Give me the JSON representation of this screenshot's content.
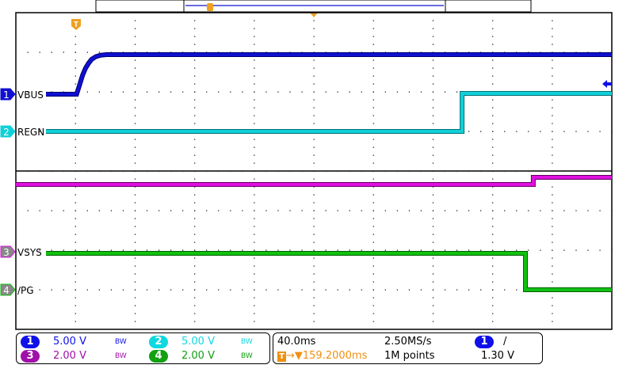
{
  "chart_data": {
    "type": "line",
    "title": "",
    "xlabel": "",
    "ylabel": "",
    "x_unit": "ms",
    "xlim": [
      -40.8,
      359.2
    ],
    "grid": true,
    "divisions": {
      "horizontal": 10,
      "vertical": 8
    },
    "series": [
      {
        "name": "VBUS",
        "channel": "1",
        "color": "#1010d0",
        "volts_per_div": 5.0,
        "points": [
          [
            -20.6,
            0
          ],
          [
            0,
            0
          ],
          [
            2,
            1.2
          ],
          [
            4,
            2.4
          ],
          [
            6,
            3.3
          ],
          [
            8,
            3.9
          ],
          [
            10,
            4.4
          ],
          [
            13,
            4.75
          ],
          [
            16,
            4.92
          ],
          [
            20,
            5.0
          ],
          [
            359.2,
            5.0
          ]
        ]
      },
      {
        "name": "REGN",
        "channel": "2",
        "color": "#10d0d8",
        "volts_per_div": 5.0,
        "points": [
          [
            -20.6,
            0
          ],
          [
            258.7,
            0
          ],
          [
            258.7,
            4.8
          ],
          [
            359.2,
            4.8
          ]
        ]
      },
      {
        "name": "VSYS",
        "channel": "3",
        "color": "#e010e0",
        "volts_per_div": 2.0,
        "points": [
          [
            -40.8,
            3.4
          ],
          [
            306.5,
            3.4
          ],
          [
            306.5,
            3.76
          ],
          [
            359.2,
            3.76
          ]
        ]
      },
      {
        "name": "/PG",
        "channel": "4",
        "color": "#10c010",
        "volts_per_div": 2.0,
        "points": [
          [
            -20.6,
            1.84
          ],
          [
            301.2,
            1.84
          ],
          [
            301.2,
            0
          ],
          [
            359.2,
            0
          ]
        ]
      }
    ],
    "trigger": {
      "time_ms": 0,
      "channel": "1",
      "level": "1.30 V",
      "slope": "rising"
    }
  },
  "trigger_marker": "T",
  "settings": {
    "ch1": {
      "num": "1",
      "scale": "5.00 V",
      "bw": "BW",
      "color": "#1010e8"
    },
    "ch2": {
      "num": "2",
      "scale": "5.00 V",
      "bw": "BW",
      "color": "#10d8e0"
    },
    "ch3": {
      "num": "3",
      "scale": "2.00 V",
      "bw": "BW",
      "color": "#a010a8"
    },
    "ch4": {
      "num": "4",
      "scale": "2.00 V",
      "bw": "BW",
      "color": "#10a010"
    },
    "timebase": "40.0ms",
    "sample_rate": "2.50MS/s",
    "trigger_delay": "159.2000ms",
    "record_length": "1M points",
    "trigger_source": "1",
    "trigger_slope": "/",
    "trigger_level": "1.30 V"
  }
}
